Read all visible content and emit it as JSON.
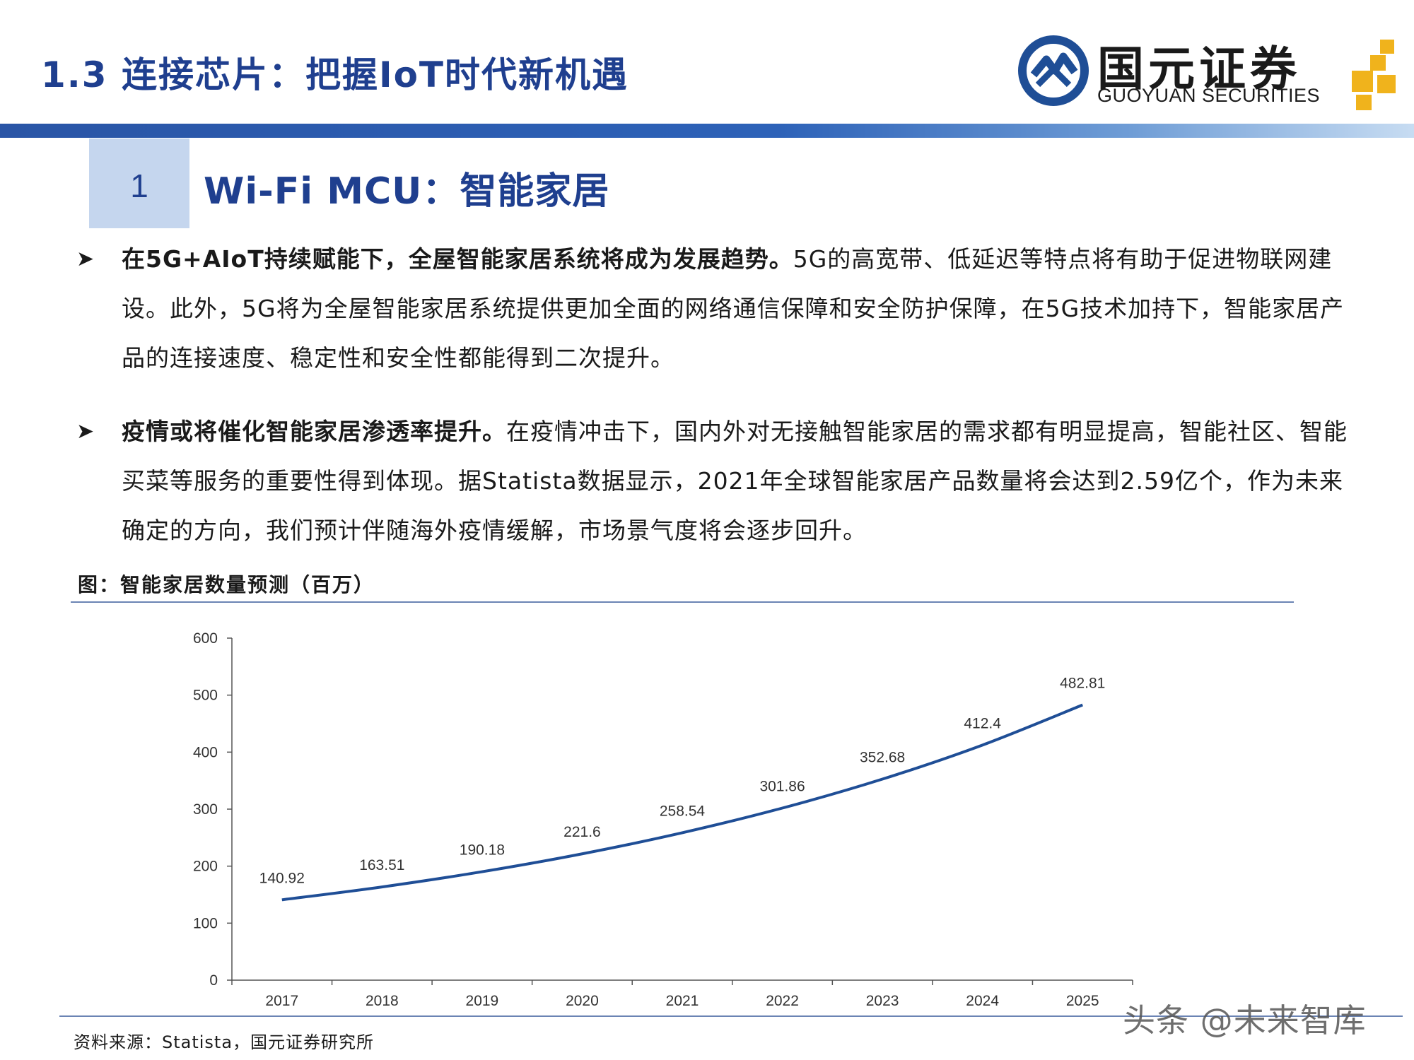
{
  "header": {
    "title": "1.3 连接芯片：把握IoT时代新机遇",
    "logo_cn": "国元证券",
    "logo_en": "GUOYUAN SECURITIES",
    "accent_color": "#1f3f8f"
  },
  "section": {
    "number": "1",
    "title": "Wi-Fi MCU：智能家居"
  },
  "paragraphs": [
    {
      "bold": "在5G+AIoT持续赋能下，全屋智能家居系统将成为发展趋势。",
      "rest": "5G的高宽带、低延迟等特点将有助于促进物联网建设。此外，5G将为全屋智能家居系统提供更加全面的网络通信保障和安全防护保障，在5G技术加持下，智能家居产品的连接速度、稳定性和安全性都能得到二次提升。"
    },
    {
      "bold": "疫情或将催化智能家居渗透率提升。",
      "rest": "在疫情冲击下，国内外对无接触智能家居的需求都有明显提高，智能社区、智能买菜等服务的重要性得到体现。据Statista数据显示，2021年全球智能家居产品数量将会达到2.59亿个，作为未来确定的方向，我们预计伴随海外疫情缓解，市场景气度将会逐步回升。"
    }
  ],
  "figure": {
    "title": "图：智能家居数量预测（百万）",
    "source": "资料来源：Statista，国元证券研究所"
  },
  "chart_data": {
    "type": "line",
    "title": "",
    "categories": [
      "2017",
      "2018",
      "2019",
      "2020",
      "2021",
      "2022",
      "2023",
      "2024",
      "2025"
    ],
    "series": [
      {
        "values": [
          140.92,
          163.51,
          190.18,
          221.6,
          258.54,
          301.86,
          352.68,
          412.4,
          482.81
        ],
        "labels": [
          "140.92",
          "163.51",
          "190.18",
          "221.6",
          "258.54",
          "301.86",
          "352.68",
          "412.4",
          "482.81"
        ],
        "color": "#1f4e96"
      }
    ],
    "yticks": [
      "0",
      "100",
      "200",
      "300",
      "400",
      "500",
      "600"
    ],
    "ylim": [
      0,
      600
    ],
    "grid": false,
    "legend": "none"
  },
  "watermark": "头条 @未来智库"
}
